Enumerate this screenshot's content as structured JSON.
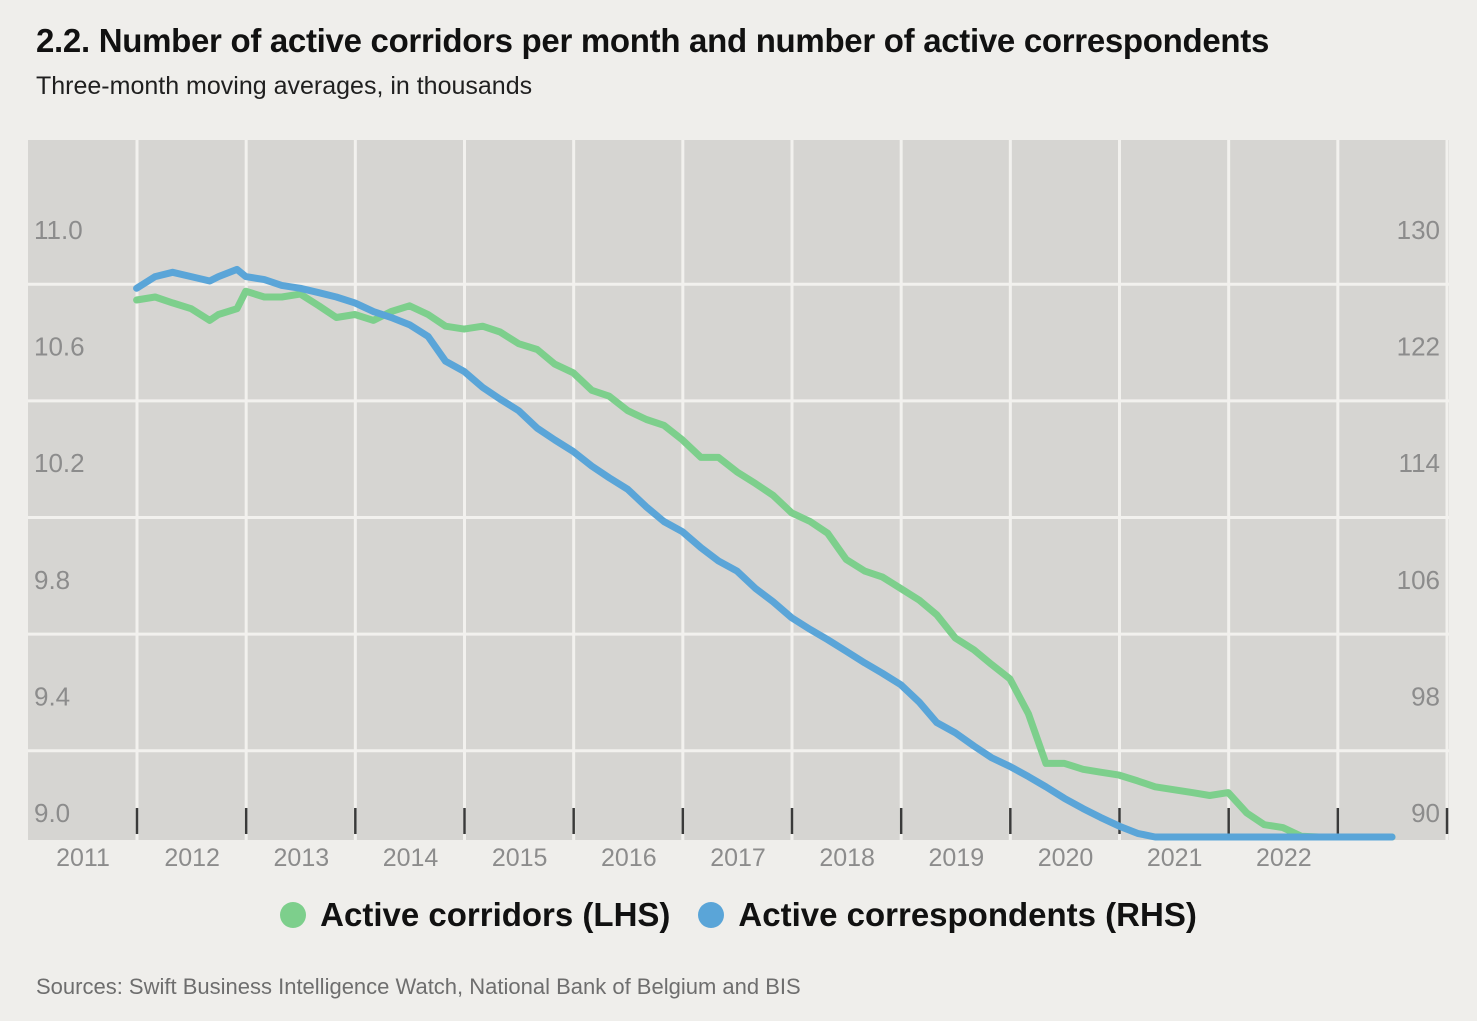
{
  "title": "2.2. Number of active corridors per month and number of active correspondents",
  "subtitle": "Three-month moving averages, in thousands",
  "source": "Sources: Swift Business Intelligence Watch, National Bank of Belgium and BIS",
  "colors": {
    "corridors": "#7dcf8c",
    "correspondents": "#5aa5d8",
    "plot_background": "#d6d5d2",
    "gridline": "#f2f1ee",
    "tick_label": "#8c8c8c"
  },
  "chart_data": {
    "type": "line",
    "title": "2.2. Number of active corridors per month and number of active correspondents",
    "subtitle": "Three-month moving averages, in thousands",
    "x_categories": [
      "2011",
      "2012",
      "2013",
      "2014",
      "2015",
      "2016",
      "2017",
      "2018",
      "2019",
      "2020",
      "2021",
      "2022"
    ],
    "x_range": [
      2011.0,
      2023.0
    ],
    "y_left": {
      "ticks": [
        "11.0",
        "10.6",
        "10.2",
        "9.8",
        "9.4",
        "9.0"
      ],
      "range": [
        8.9,
        11.2
      ]
    },
    "y_right": {
      "ticks": [
        "130",
        "122",
        "114",
        "106",
        "98",
        "90"
      ],
      "range": [
        88,
        134
      ]
    },
    "grid": true,
    "legend_position": "bottom",
    "series": [
      {
        "name": "Active corridors (LHS)",
        "axis": "left",
        "color": "#7dcf8c",
        "x": [
          2011.5,
          2011.67,
          2011.83,
          2012.0,
          2012.17,
          2012.25,
          2012.42,
          2012.5,
          2012.67,
          2012.83,
          2013.0,
          2013.17,
          2013.33,
          2013.5,
          2013.67,
          2013.83,
          2014.0,
          2014.17,
          2014.33,
          2014.5,
          2014.67,
          2014.83,
          2015.0,
          2015.17,
          2015.33,
          2015.5,
          2015.67,
          2015.83,
          2016.0,
          2016.17,
          2016.33,
          2016.5,
          2016.67,
          2016.83,
          2017.0,
          2017.17,
          2017.33,
          2017.5,
          2017.67,
          2017.83,
          2018.0,
          2018.17,
          2018.33,
          2018.5,
          2018.67,
          2018.83,
          2019.0,
          2019.17,
          2019.33,
          2019.5,
          2019.67,
          2019.83,
          2020.0,
          2020.17,
          2020.33,
          2020.5,
          2020.67,
          2020.83,
          2021.0,
          2021.17,
          2021.33,
          2021.5,
          2021.67,
          2021.83,
          2022.0,
          2022.17,
          2022.33,
          2022.5,
          2022.67,
          2022.83,
          2023.0
        ],
        "values": [
          10.76,
          10.77,
          10.75,
          10.73,
          10.69,
          10.71,
          10.73,
          10.79,
          10.77,
          10.77,
          10.78,
          10.74,
          10.7,
          10.71,
          10.69,
          10.72,
          10.74,
          10.71,
          10.67,
          10.66,
          10.67,
          10.65,
          10.61,
          10.59,
          10.54,
          10.51,
          10.45,
          10.43,
          10.38,
          10.35,
          10.33,
          10.28,
          10.22,
          10.22,
          10.17,
          10.13,
          10.09,
          10.03,
          10.0,
          9.96,
          9.87,
          9.83,
          9.81,
          9.77,
          9.73,
          9.68,
          9.6,
          9.56,
          9.51,
          9.46,
          9.34,
          9.17,
          9.17,
          9.15,
          9.14,
          9.13,
          9.11,
          9.09,
          9.08,
          9.07,
          9.06,
          9.07,
          9.0,
          8.96,
          8.95,
          8.92,
          8.9,
          8.9,
          8.9,
          8.9,
          8.9
        ]
      },
      {
        "name": "Active correspondents (RHS)",
        "axis": "right",
        "color": "#5aa5d8",
        "x": [
          2011.5,
          2011.67,
          2011.83,
          2012.0,
          2012.17,
          2012.25,
          2012.42,
          2012.5,
          2012.67,
          2012.83,
          2013.0,
          2013.17,
          2013.33,
          2013.5,
          2013.67,
          2013.83,
          2014.0,
          2014.17,
          2014.33,
          2014.5,
          2014.67,
          2014.83,
          2015.0,
          2015.17,
          2015.33,
          2015.5,
          2015.67,
          2015.83,
          2016.0,
          2016.17,
          2016.33,
          2016.5,
          2016.67,
          2016.83,
          2017.0,
          2017.17,
          2017.33,
          2017.5,
          2017.67,
          2017.83,
          2018.0,
          2018.17,
          2018.33,
          2018.5,
          2018.67,
          2018.83,
          2019.0,
          2019.17,
          2019.33,
          2019.5,
          2019.67,
          2019.83,
          2020.0,
          2020.17,
          2020.33,
          2020.5,
          2020.67,
          2020.83,
          2021.0,
          2021.17,
          2021.33,
          2021.5,
          2021.67,
          2021.83,
          2022.0,
          2022.17,
          2022.33,
          2022.5,
          2022.67,
          2022.83,
          2023.0
        ],
        "values": [
          126.0,
          126.8,
          127.1,
          126.8,
          126.5,
          126.8,
          127.3,
          126.8,
          126.6,
          126.2,
          126.0,
          125.7,
          125.4,
          125.0,
          124.4,
          124.0,
          123.5,
          122.7,
          121.0,
          120.3,
          119.2,
          118.4,
          117.6,
          116.4,
          115.6,
          114.8,
          113.8,
          113.0,
          112.2,
          111.0,
          110.0,
          109.3,
          108.2,
          107.3,
          106.6,
          105.4,
          104.5,
          103.4,
          102.6,
          101.9,
          101.1,
          100.3,
          99.6,
          98.8,
          97.6,
          96.2,
          95.5,
          94.6,
          93.8,
          93.2,
          92.5,
          91.8,
          91.0,
          90.3,
          89.7,
          89.1,
          88.6,
          88.2,
          87.8,
          87.5,
          87.2,
          86.9,
          86.6,
          86.3,
          86.0,
          85.8,
          85.5,
          85.3,
          85.1,
          85.0,
          85.0
        ]
      }
    ]
  },
  "legend": [
    {
      "label": "Active corridors (LHS)",
      "color": "#7dcf8c"
    },
    {
      "label": "Active correspondents (RHS)",
      "color": "#5aa5d8"
    }
  ]
}
